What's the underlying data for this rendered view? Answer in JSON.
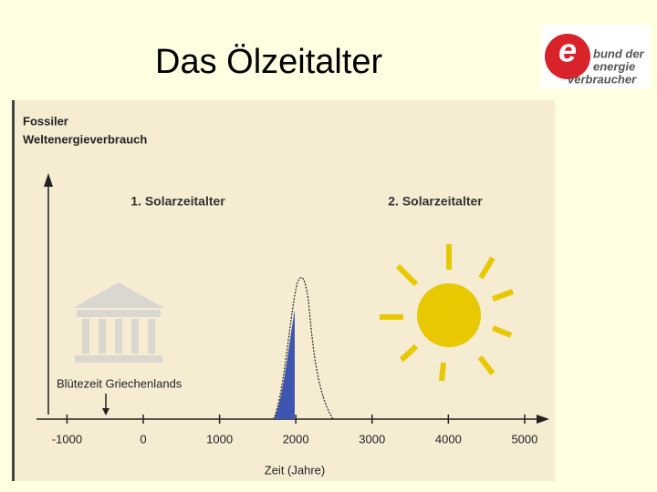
{
  "title": "Das Ölzeitalter",
  "logo": {
    "lines": [
      "bund der",
      "energie",
      "verbraucher"
    ]
  },
  "chart_data": {
    "type": "curve",
    "y_label": [
      "Fossiler",
      "Weltenergieverbrauch"
    ],
    "x_label": "Zeit (Jahre)",
    "xlim": [
      -1400,
      5300
    ],
    "xticks": [
      -1000,
      0,
      1000,
      2000,
      3000,
      4000,
      5000
    ],
    "annotations": [
      "1. Solarzeitalter",
      "2. Solarzeitalter",
      "Blütezeit Griechenlands"
    ]
  }
}
